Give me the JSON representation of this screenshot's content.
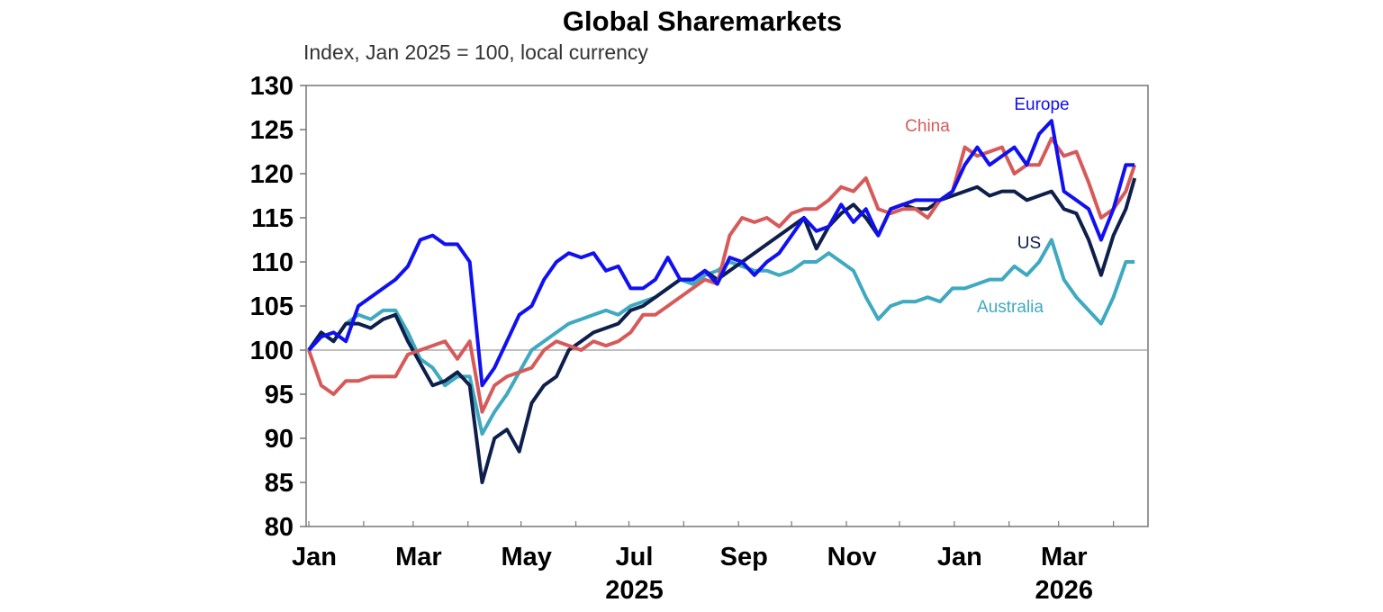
{
  "chart_data": {
    "type": "line",
    "title": "Global Sharemarkets",
    "subtitle": "Index, Jan 2025 = 100, local currency",
    "ylim": [
      80,
      130
    ],
    "yticks": [
      80,
      85,
      90,
      95,
      100,
      105,
      110,
      115,
      120,
      125,
      130
    ],
    "reference_line": 100,
    "xticks": [
      {
        "date": "2025-01-01",
        "label": "Jan"
      },
      {
        "date": "2025-03-01",
        "label": "Mar"
      },
      {
        "date": "2025-05-01",
        "label": "May"
      },
      {
        "date": "2025-07-01",
        "label": "Jul"
      },
      {
        "date": "2025-09-01",
        "label": "Sep"
      },
      {
        "date": "2025-11-01",
        "label": "Nov"
      },
      {
        "date": "2026-01-01",
        "label": "Jan"
      },
      {
        "date": "2026-03-01",
        "label": "Mar"
      }
    ],
    "year_labels": [
      {
        "date": "2025-07-01",
        "label": "2025"
      },
      {
        "date": "2026-03-01",
        "label": "2026"
      }
    ],
    "grid": false,
    "x": [
      "2025-01-01",
      "2025-01-08",
      "2025-01-15",
      "2025-01-22",
      "2025-01-29",
      "2025-02-05",
      "2025-02-12",
      "2025-02-19",
      "2025-02-26",
      "2025-03-05",
      "2025-03-12",
      "2025-03-19",
      "2025-03-26",
      "2025-04-02",
      "2025-04-09",
      "2025-04-16",
      "2025-04-23",
      "2025-04-30",
      "2025-05-07",
      "2025-05-14",
      "2025-05-21",
      "2025-05-28",
      "2025-06-04",
      "2025-06-11",
      "2025-06-18",
      "2025-06-25",
      "2025-07-02",
      "2025-07-09",
      "2025-07-16",
      "2025-07-23",
      "2025-07-30",
      "2025-08-06",
      "2025-08-13",
      "2025-08-20",
      "2025-08-27",
      "2025-09-03",
      "2025-09-10",
      "2025-09-17",
      "2025-09-24",
      "2025-10-01",
      "2025-10-08",
      "2025-10-15",
      "2025-10-22",
      "2025-10-29",
      "2025-11-05",
      "2025-11-12",
      "2025-11-19",
      "2025-11-26",
      "2025-12-03",
      "2025-12-10",
      "2025-12-17",
      "2025-12-24",
      "2025-12-31",
      "2026-01-07",
      "2026-01-14",
      "2026-01-21",
      "2026-01-28",
      "2026-02-04",
      "2026-02-11",
      "2026-02-18",
      "2026-02-25",
      "2026-03-04",
      "2026-03-11",
      "2026-03-18",
      "2026-03-25",
      "2026-04-01",
      "2026-04-08",
      "2026-04-13"
    ],
    "series": [
      {
        "name": "Australia",
        "color": "#3fa9c0",
        "values": [
          100,
          102,
          101,
          103,
          104,
          103.5,
          104.5,
          104.5,
          102,
          99,
          98,
          96,
          97,
          97,
          90.5,
          93,
          95,
          97.5,
          100,
          101,
          102,
          103,
          103.5,
          104,
          104.5,
          104,
          105,
          105.5,
          106,
          107,
          108,
          107.5,
          108.5,
          109,
          110,
          109.5,
          109,
          109,
          108.5,
          109,
          110,
          110,
          111,
          110,
          109,
          106,
          103.5,
          105,
          105.5,
          105.5,
          106,
          105.5,
          107,
          107,
          107.5,
          108,
          108,
          109.5,
          108.5,
          110,
          112.5,
          108,
          106,
          104.5,
          103,
          106,
          110,
          110
        ]
      },
      {
        "name": "US",
        "color": "#0d1f4a",
        "values": [
          100,
          102,
          101,
          103,
          103,
          102.5,
          103.5,
          104,
          101,
          98.5,
          96,
          96.5,
          97.5,
          96,
          85,
          90,
          91,
          88.5,
          94,
          96,
          97,
          100,
          101,
          102,
          102.5,
          103,
          104.5,
          105,
          106,
          107,
          108,
          108,
          109,
          108,
          109,
          110,
          111,
          112,
          113,
          114,
          115,
          111.5,
          114,
          115.5,
          116.5,
          115,
          113,
          116,
          116.5,
          116,
          116,
          117,
          117.5,
          118,
          118.5,
          117.5,
          118,
          118,
          117,
          117.5,
          118,
          116,
          115.5,
          112.5,
          108.5,
          113,
          116,
          119.5
        ]
      },
      {
        "name": "China",
        "color": "#d65a5a",
        "values": [
          100,
          96,
          95,
          96.5,
          96.5,
          97,
          97,
          97,
          99.5,
          100,
          100.5,
          101,
          99,
          101,
          93,
          96,
          97,
          97.5,
          98,
          100,
          101,
          100.5,
          100,
          101,
          100.5,
          101,
          102,
          104,
          104,
          105,
          106,
          107,
          108,
          107.5,
          113,
          115,
          114.5,
          115,
          114,
          115.5,
          116,
          116,
          117,
          118.5,
          118,
          119.5,
          116,
          115.5,
          116,
          116,
          115,
          117,
          118,
          123,
          122,
          122.5,
          123,
          120,
          121,
          121,
          124,
          122,
          122.5,
          119,
          115,
          116,
          118,
          121
        ]
      },
      {
        "name": "Europe",
        "color": "#1010f0",
        "values": [
          100,
          101.5,
          102,
          101,
          105,
          106,
          107,
          108,
          109.5,
          112.5,
          113,
          112,
          112,
          110,
          96,
          98,
          101,
          104,
          105,
          108,
          110,
          111,
          110.5,
          111,
          109,
          109.5,
          107,
          107,
          108,
          110.5,
          108,
          108,
          109,
          107.5,
          110.5,
          110,
          108.5,
          110,
          111,
          113,
          115,
          113.5,
          114,
          116.5,
          114.5,
          116,
          113,
          116,
          116.5,
          117,
          117,
          117,
          118,
          121,
          123,
          121,
          122,
          123,
          121,
          124.5,
          126,
          118,
          117,
          116,
          112.5,
          116,
          121,
          121
        ]
      }
    ]
  }
}
